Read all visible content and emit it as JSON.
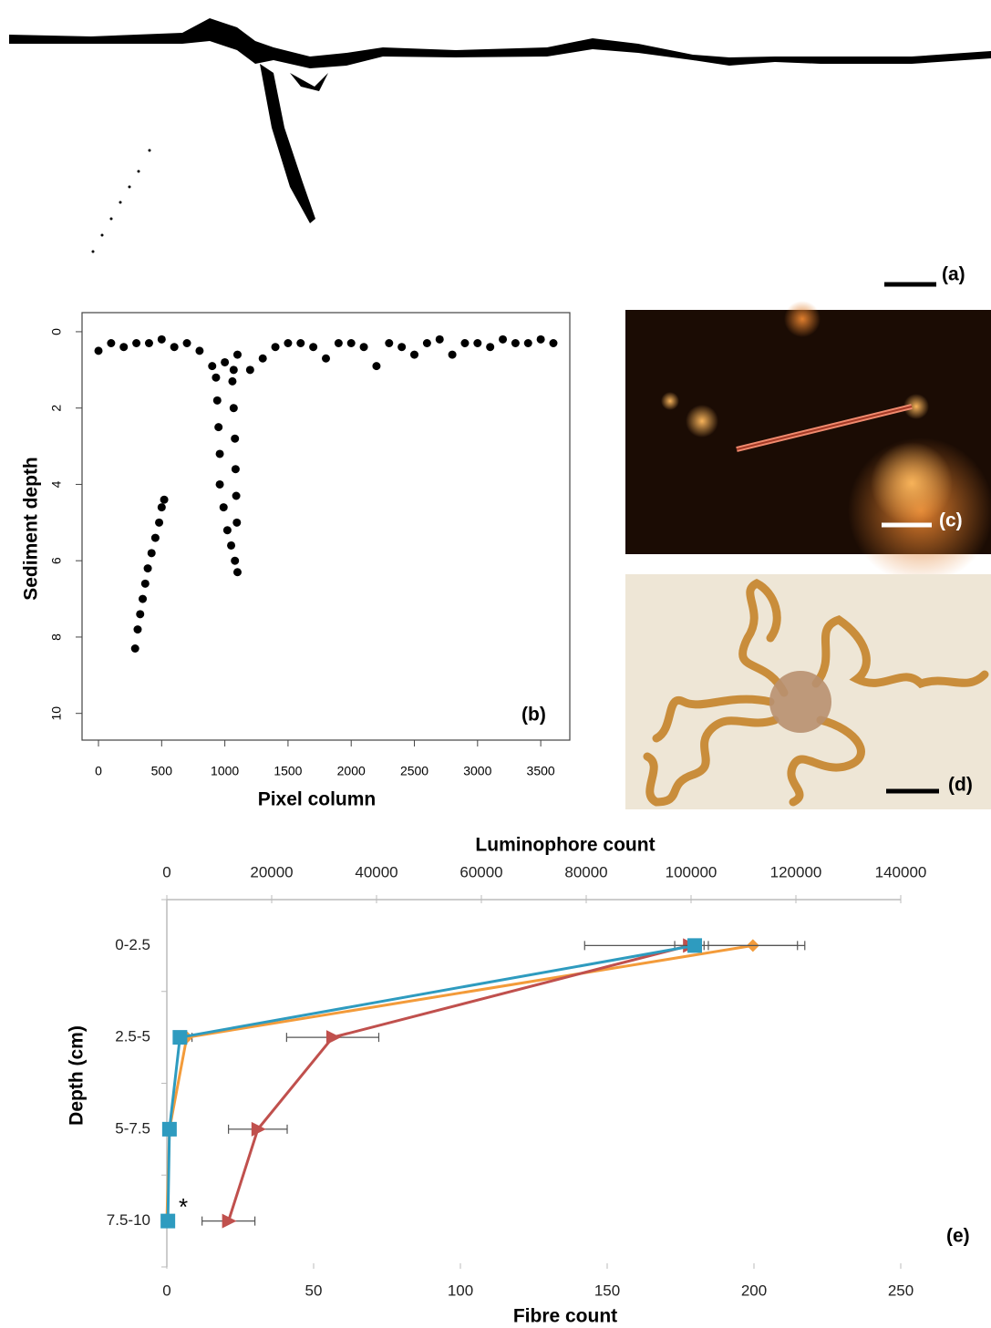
{
  "panels": {
    "a": {
      "label": "(a)"
    },
    "c": {
      "label": "(c)"
    },
    "d": {
      "label": "(d)"
    }
  },
  "chart_data": [
    {
      "type": "scatter",
      "label": "(b)",
      "x_label": "Pixel column",
      "y_label": "Sediment depth",
      "xlim": [
        -130,
        3730
      ],
      "ylim": [
        -0.5,
        10.7
      ],
      "y_reversed": true,
      "color": "#000000",
      "xticks": [
        0,
        500,
        1000,
        1500,
        2000,
        2500,
        3000,
        3500
      ],
      "yticks": [
        0,
        2,
        4,
        6,
        8,
        10
      ],
      "x": [
        0,
        100,
        200,
        300,
        400,
        500,
        600,
        700,
        800,
        900,
        1000,
        1100,
        1200,
        1300,
        1400,
        1500,
        1600,
        1700,
        1800,
        1900,
        2000,
        2100,
        2200,
        2300,
        2400,
        2500,
        2600,
        2700,
        2800,
        2900,
        3000,
        3100,
        3200,
        3300,
        3400,
        3500,
        3600,
        930,
        940,
        950,
        960,
        960,
        990,
        1020,
        1050,
        1080,
        1100,
        1060,
        1070,
        1080,
        1085,
        1090,
        1095,
        1070,
        290,
        310,
        330,
        350,
        370,
        390,
        420,
        450,
        480,
        500,
        520
      ],
      "y": [
        0.5,
        0.3,
        0.4,
        0.3,
        0.3,
        0.2,
        0.4,
        0.3,
        0.5,
        0.9,
        0.8,
        0.6,
        1.0,
        0.7,
        0.4,
        0.3,
        0.3,
        0.4,
        0.7,
        0.3,
        0.3,
        0.4,
        0.9,
        0.3,
        0.4,
        0.6,
        0.3,
        0.2,
        0.6,
        0.3,
        0.3,
        0.4,
        0.2,
        0.3,
        0.3,
        0.2,
        0.3,
        1.2,
        1.8,
        2.5,
        3.2,
        4.0,
        4.6,
        5.2,
        5.6,
        6.0,
        6.3,
        1.3,
        2.0,
        2.8,
        3.6,
        4.3,
        5.0,
        1.0,
        8.3,
        7.8,
        7.4,
        7.0,
        6.6,
        6.2,
        5.8,
        5.4,
        5.0,
        4.6,
        4.4
      ]
    },
    {
      "type": "line",
      "label": "(e)",
      "x_label": "Fibre count",
      "x2_label": "Luminophore count",
      "y_label": "Depth (cm)",
      "categories": [
        "0-2.5",
        "2.5-5",
        "5-7.5",
        "7.5-10"
      ],
      "xlim": [
        0,
        250
      ],
      "xticks": [
        0,
        50,
        100,
        150,
        200,
        250
      ],
      "x2lim": [
        0,
        140000
      ],
      "x2ticks": [
        0,
        20000,
        40000,
        60000,
        80000,
        100000,
        120000,
        140000
      ],
      "annotation": "*",
      "series": [
        {
          "color": "#f39b3a",
          "marker": "diamond",
          "axis": "x2",
          "values": [
            111800,
            3800,
            500,
            0
          ],
          "errors": [
            8500,
            1000,
            300,
            0
          ]
        },
        {
          "color": "#c0504d",
          "marker": "triangle",
          "axis": "x",
          "values": [
            178,
            56.5,
            31,
            21
          ],
          "errors": [
            5,
            15.7,
            10,
            9
          ]
        },
        {
          "color": "#2e9bbf",
          "marker": "square",
          "axis": "x2",
          "values": [
            100700,
            2500,
            500,
            200
          ],
          "errors": [
            21000,
            1000,
            300,
            0
          ]
        }
      ]
    }
  ]
}
